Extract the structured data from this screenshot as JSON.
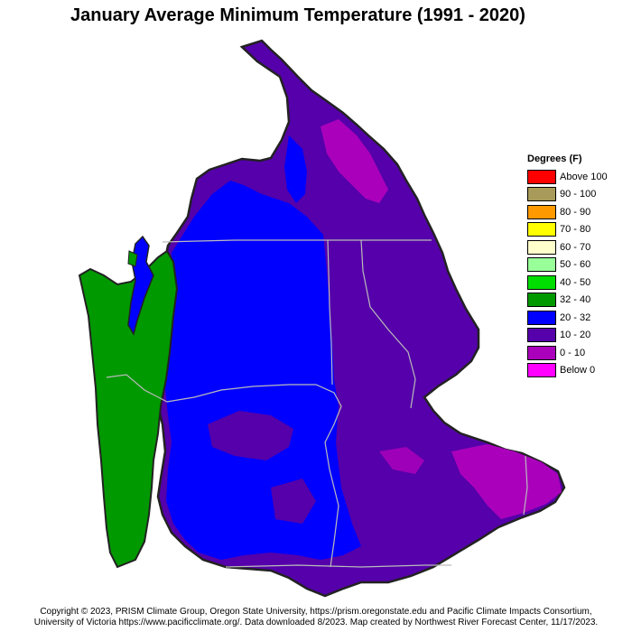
{
  "title": "January Average Minimum Temperature (1991 - 2020)",
  "legend": {
    "title": "Degrees (F)",
    "items": [
      {
        "label": "Above 100",
        "color": "#ff0000"
      },
      {
        "label": "90 - 100",
        "color": "#a89b5a"
      },
      {
        "label": "80 - 90",
        "color": "#ff9900"
      },
      {
        "label": "70 - 80",
        "color": "#ffff00"
      },
      {
        "label": "60 - 70",
        "color": "#ffffcc"
      },
      {
        "label": "50 - 60",
        "color": "#99ff99"
      },
      {
        "label": "40 - 50",
        "color": "#00dd00"
      },
      {
        "label": "32 - 40",
        "color": "#009900"
      },
      {
        "label": "20 - 32",
        "color": "#0000ff"
      },
      {
        "label": "10 - 20",
        "color": "#5500aa"
      },
      {
        "label": "0 - 10",
        "color": "#aa00bb"
      },
      {
        "label": "Below 0",
        "color": "#ff00ff"
      }
    ]
  },
  "footer": {
    "line1": "Copyright © 2023, PRISM Climate Group, Oregon State University, https://prism.oregonstate.edu and Pacific Climate Impacts Consortium,",
    "line2": "University of Victoria https://www.pacificclimate.org/.  Data downloaded 8/2023. Map created by Northwest River Forecast Center, 11/17/2023."
  }
}
